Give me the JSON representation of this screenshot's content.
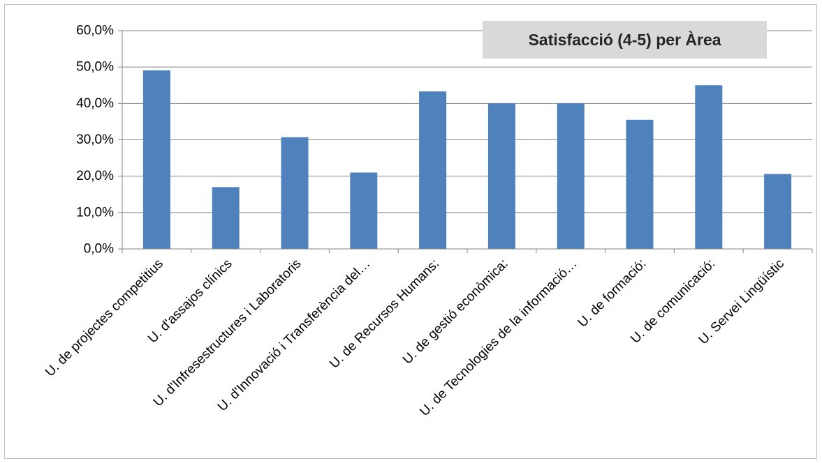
{
  "chart_data": {
    "type": "bar",
    "title": "Satisfacció (4-5) per Àrea",
    "categories": [
      "U. de projectes competitius",
      "U. d'assajos clínics",
      "U. d'Infresestructures i Laboratoris",
      "U. d'Innovació i Transferència del…",
      "U. de Recursos Humans:",
      "U. de gestió econòmica:",
      "U. de Tecnologies de la informació…",
      "U. de formació:",
      "U. de comunicació:",
      "U. Servei Lingüístic"
    ],
    "values": [
      49.1,
      17.0,
      30.7,
      21.0,
      43.3,
      40.0,
      40.0,
      35.5,
      45.0,
      20.6
    ],
    "ylim": [
      0,
      60
    ],
    "yticks": [
      "0,0%",
      "10,0%",
      "20,0%",
      "30,0%",
      "40,0%",
      "50,0%",
      "60,0%"
    ],
    "grid": true,
    "bar_color": "#4f81bd",
    "grid_color": "#868686",
    "title_background": "#d9d9d9",
    "xlabel": "",
    "ylabel": ""
  }
}
